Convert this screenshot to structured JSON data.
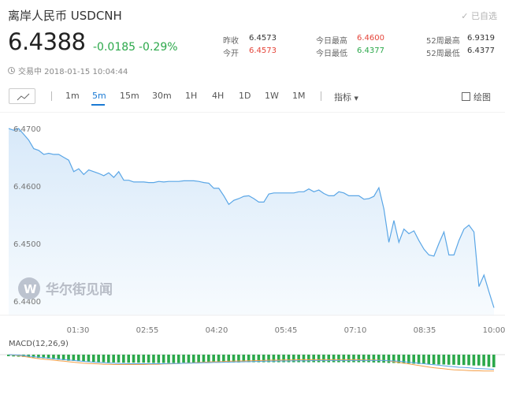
{
  "header": {
    "title": "离岸人民币  USDCNH",
    "added_label": "已自选",
    "price": "6.4388",
    "change": "-0.0185",
    "change_pct": "-0.29%",
    "status": "交易中 2018-01-15 10:04:44"
  },
  "stats": {
    "prev_close_label": "昨收",
    "prev_close": "6.4573",
    "open_label": "今开",
    "open": "6.4573",
    "high_label": "今日最高",
    "high": "6.4600",
    "low_label": "今日最低",
    "low": "6.4377",
    "wk52_high_label": "52周最高",
    "wk52_high": "6.9319",
    "wk52_low_label": "52周最低",
    "wk52_low": "6.4377"
  },
  "toolbar": {
    "chart_type_icon": "line-chart-icon",
    "intervals": [
      "1m",
      "5m",
      "15m",
      "30m",
      "1H",
      "4H",
      "1D",
      "1W",
      "1M"
    ],
    "active_interval": "5m",
    "indicator_label": "指标",
    "draw_label": "绘图"
  },
  "colors": {
    "up": "#e5453a",
    "down": "#2ba84a",
    "accent": "#1a7ad4",
    "line": "#5aa6e6",
    "area": "#e9f3fc",
    "macd_orange": "#f5a14b",
    "macd_blue": "#5aa6e6"
  },
  "watermark": "华尔街见闻",
  "chart_data": {
    "type": "area",
    "ylim": [
      6.4375,
      6.4718
    ],
    "yticks": [
      "6.4700",
      "6.4600",
      "6.4500",
      "6.4400"
    ],
    "xticks": [
      "01:30",
      "02:55",
      "04:20",
      "05:45",
      "07:10",
      "08:35",
      "10:00"
    ],
    "x_range": [
      "00:05",
      "10:00"
    ],
    "values": [
      6.47,
      6.4697,
      6.47,
      6.469,
      6.468,
      6.4665,
      6.4662,
      6.4655,
      6.4657,
      6.4655,
      6.4655,
      6.465,
      6.4645,
      6.4625,
      6.463,
      6.462,
      6.4628,
      6.4625,
      6.4622,
      6.4618,
      6.4623,
      6.4615,
      6.4625,
      6.461,
      6.461,
      6.4607,
      6.4607,
      6.4607,
      6.4606,
      6.4606,
      6.4608,
      6.4607,
      6.4608,
      6.4608,
      6.4608,
      6.4609,
      6.4609,
      6.4609,
      6.4608,
      6.4606,
      6.4605,
      6.4596,
      6.4596,
      6.4583,
      6.4568,
      6.4575,
      6.4578,
      6.4582,
      6.4583,
      6.4578,
      6.4572,
      6.4572,
      6.4586,
      6.4588,
      6.4588,
      6.4588,
      6.4588,
      6.4588,
      6.459,
      6.459,
      6.4595,
      6.459,
      6.4593,
      6.4587,
      6.4583,
      6.4583,
      6.459,
      6.4588,
      6.4583,
      6.4583,
      6.4583,
      6.4577,
      6.4578,
      6.4582,
      6.4597,
      6.456,
      6.4502,
      6.454,
      6.4502,
      6.4525,
      6.4517,
      6.4522,
      6.4505,
      6.449,
      6.448,
      6.4478,
      6.45,
      6.452,
      6.448,
      6.448,
      6.4505,
      6.4525,
      6.4532,
      6.452,
      6.4425,
      6.4445,
      6.4416,
      6.4388
    ]
  },
  "macd": {
    "label": "MACD(12,26,9)",
    "hist": [
      0.6,
      0.7,
      0.8,
      0.9,
      1,
      1.1,
      1.3,
      1.4,
      1.6,
      1.8,
      2,
      2.2,
      2.4,
      2.5,
      2.6,
      2.7,
      2.8,
      2.9,
      3,
      3,
      3.1,
      3.1,
      3.1,
      3.2,
      3.2,
      3.2,
      3.2,
      3.2,
      3.2,
      3.3,
      3.3,
      3.3,
      3.3,
      3.3,
      3.3,
      3.2,
      3.2,
      3.2,
      3.2,
      3.2,
      3.2,
      3.1,
      3.1,
      3.1,
      3.1,
      3.1,
      3.1,
      3,
      3,
      3,
      3,
      3,
      3,
      3,
      3,
      3,
      3,
      3,
      3,
      3,
      3,
      3,
      3,
      3,
      3,
      3,
      3,
      3,
      3,
      3,
      3,
      3,
      3,
      3.1,
      3.1,
      3.2,
      3.3,
      3.3,
      3.4,
      3.5,
      3.5,
      3.6,
      3.7,
      3.7,
      3.8,
      3.8,
      3.9,
      3.9,
      4,
      4,
      4.1,
      4.1,
      4.2,
      4.3,
      4.3,
      4.5,
      4.8,
      5
    ],
    "macd_line": [
      0,
      0.2,
      0.4,
      0.7,
      1,
      1.3,
      1.6,
      1.8,
      2,
      2.2,
      2.4,
      2.6,
      2.8,
      3,
      3.2,
      3.4,
      3.5,
      3.6,
      3.7,
      3.8,
      3.8,
      3.9,
      3.9,
      3.9,
      3.9,
      3.9,
      3.9,
      3.9,
      3.8,
      3.8,
      3.8,
      3.7,
      3.7,
      3.6,
      3.5,
      3.4,
      3.3,
      3.2,
      3.1,
      3,
      2.9,
      2.8,
      2.8,
      2.7,
      2.6,
      2.6,
      2.5,
      2.5,
      2.4,
      2.4,
      2.3,
      2.3,
      2.2,
      2.2,
      2.2,
      2.1,
      2.1,
      2.1,
      2,
      2,
      2,
      2,
      2,
      2,
      2,
      2,
      2,
      2,
      2,
      2,
      2,
      2.1,
      2.1,
      2.1,
      2.2,
      2.3,
      2.5,
      2.8,
      3.1,
      3.4,
      3.7,
      4,
      4.3,
      4.6,
      4.9,
      5.2,
      5.4,
      5.6,
      5.8,
      6,
      6.1,
      6.2,
      6.3,
      6.4,
      6.4,
      6.5,
      6.5,
      6.5
    ],
    "signal_line": [
      0,
      0.1,
      0.2,
      0.4,
      0.6,
      0.8,
      1,
      1.2,
      1.4,
      1.6,
      1.8,
      2,
      2.1,
      2.3,
      2.5,
      2.7,
      2.8,
      3,
      3.1,
      3.2,
      3.3,
      3.4,
      3.5,
      3.5,
      3.6,
      3.6,
      3.6,
      3.6,
      3.6,
      3.6,
      3.6,
      3.6,
      3.5,
      3.5,
      3.5,
      3.4,
      3.4,
      3.3,
      3.3,
      3.2,
      3.2,
      3.1,
      3.1,
      3,
      3,
      2.9,
      2.9,
      2.8,
      2.8,
      2.7,
      2.7,
      2.6,
      2.6,
      2.6,
      2.5,
      2.5,
      2.5,
      2.4,
      2.4,
      2.4,
      2.4,
      2.3,
      2.3,
      2.3,
      2.3,
      2.3,
      2.3,
      2.3,
      2.3,
      2.3,
      2.3,
      2.3,
      2.3,
      2.3,
      2.3,
      2.3,
      2.4,
      2.5,
      2.6,
      2.8,
      3,
      3.2,
      3.4,
      3.6,
      3.8,
      4,
      4.2,
      4.4,
      4.6,
      4.8,
      5,
      5.1,
      5.2,
      5.4,
      5.5,
      5.6,
      5.7,
      5.8
    ]
  }
}
